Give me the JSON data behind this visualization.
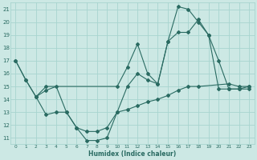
{
  "xlabel": "Humidex (Indice chaleur)",
  "ylabel": "",
  "xlim": [
    -0.5,
    23.5
  ],
  "ylim": [
    10.5,
    21.5
  ],
  "xticks": [
    0,
    1,
    2,
    3,
    4,
    5,
    6,
    7,
    8,
    9,
    10,
    11,
    12,
    13,
    14,
    15,
    16,
    17,
    18,
    19,
    20,
    21,
    22,
    23
  ],
  "yticks": [
    11,
    12,
    13,
    14,
    15,
    16,
    17,
    18,
    19,
    20,
    21
  ],
  "bg_color": "#cce8e4",
  "grid_color": "#a8d4cf",
  "line_color": "#2a6b62",
  "line1_x": [
    0,
    1,
    2,
    3,
    10,
    11,
    12,
    13,
    14,
    15,
    16,
    17,
    18,
    19,
    20,
    21,
    22,
    23
  ],
  "line1_y": [
    17,
    15.5,
    14.2,
    15.0,
    15.0,
    16.5,
    18.3,
    16.0,
    15.2,
    18.5,
    21.2,
    21.0,
    20.0,
    19.0,
    17.0,
    14.8,
    14.8,
    15.0
  ],
  "line2_x": [
    0,
    1,
    2,
    3,
    4,
    5,
    6,
    7,
    8,
    9,
    10,
    11,
    12,
    13,
    14,
    15,
    16,
    17,
    18,
    19,
    20,
    21,
    22,
    23
  ],
  "line2_y": [
    17,
    15.5,
    14.2,
    14.7,
    15.0,
    13.0,
    11.8,
    11.5,
    11.5,
    11.8,
    13.0,
    15.0,
    16.0,
    15.5,
    15.2,
    18.5,
    19.2,
    19.2,
    20.2,
    19.0,
    14.8,
    14.8,
    14.8,
    14.8
  ],
  "line3_x": [
    2,
    3,
    4,
    5,
    6,
    7,
    8,
    9,
    10,
    11,
    12,
    13,
    14,
    15,
    16,
    17,
    18,
    21,
    22,
    23
  ],
  "line3_y": [
    14.2,
    12.8,
    13.0,
    13.0,
    11.8,
    10.8,
    10.8,
    11.0,
    13.0,
    13.2,
    13.5,
    13.8,
    14.0,
    14.3,
    14.7,
    15.0,
    15.0,
    15.2,
    15.0,
    15.0
  ]
}
